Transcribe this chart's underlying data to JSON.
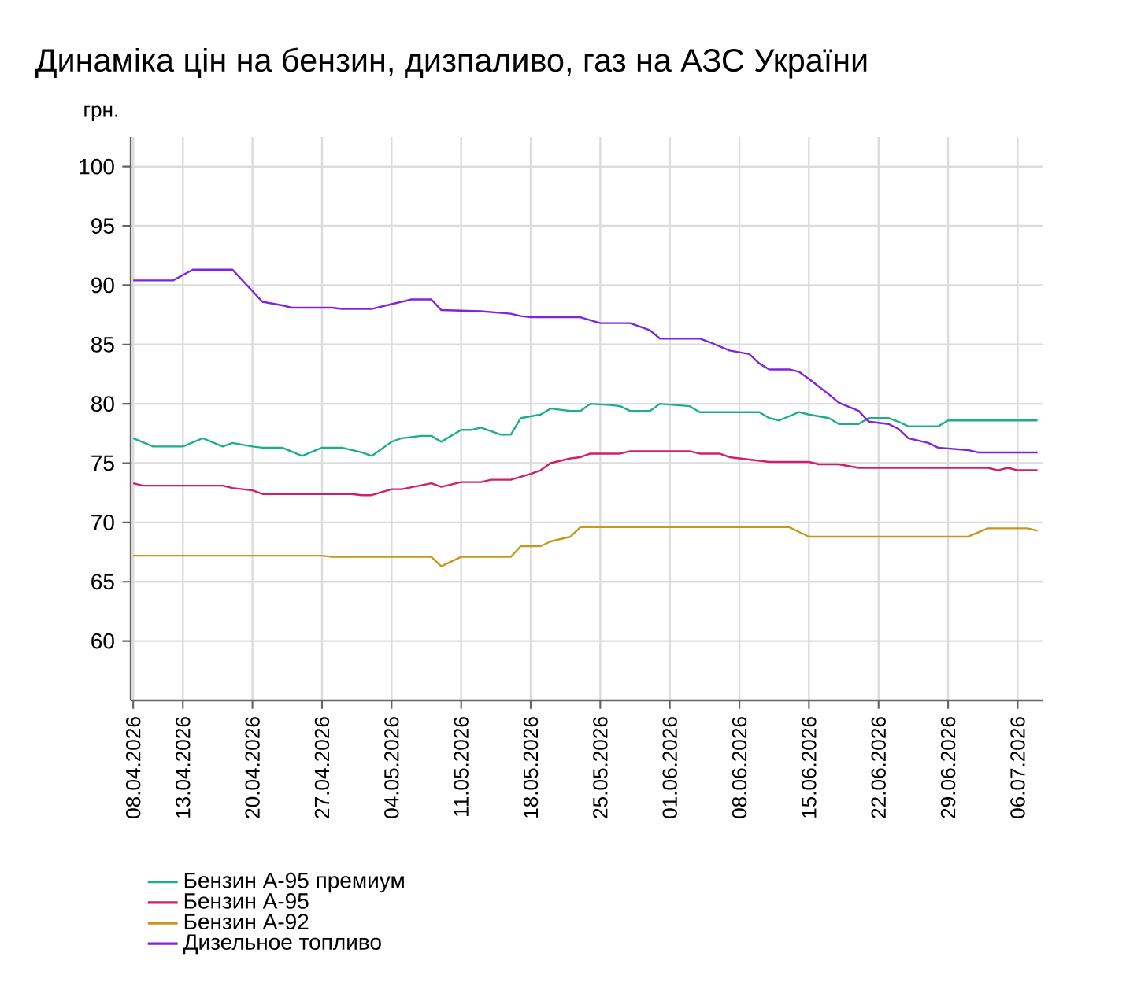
{
  "chart_data": {
    "type": "line",
    "title": "Динаміка цін на бензин, дизпаливо, газ на АЗС України",
    "ylabel": "грн.",
    "xlim": [
      "2026-04-07T18:00",
      "2026-07-08T12:00"
    ],
    "ylim": [
      55,
      102.5
    ],
    "yticks": [
      60,
      65,
      70,
      75,
      80,
      85,
      90,
      95,
      100
    ],
    "xticks": [
      {
        "value": "2026-04-08",
        "label": "08.04.2026"
      },
      {
        "value": "2026-04-13",
        "label": "13.04.2026"
      },
      {
        "value": "2026-04-20",
        "label": "20.04.2026"
      },
      {
        "value": "2026-04-27",
        "label": "27.04.2026"
      },
      {
        "value": "2026-05-04",
        "label": "04.05.2026"
      },
      {
        "value": "2026-05-11",
        "label": "11.05.2026"
      },
      {
        "value": "2026-05-18",
        "label": "18.05.2026"
      },
      {
        "value": "2026-05-25",
        "label": "25.05.2026"
      },
      {
        "value": "2026-06-01",
        "label": "01.06.2026"
      },
      {
        "value": "2026-06-08",
        "label": "08.06.2026"
      },
      {
        "value": "2026-06-15",
        "label": "15.06.2026"
      },
      {
        "value": "2026-06-22",
        "label": "22.06.2026"
      },
      {
        "value": "2026-06-29",
        "label": "29.06.2026"
      },
      {
        "value": "2026-07-06",
        "label": "06.07.2026"
      }
    ],
    "grid": true,
    "legend": "bottom",
    "series": [
      {
        "name": "Бензин А-95 премиум",
        "color": "#1fae8c",
        "x": [
          "2026-04-08",
          "2026-04-10",
          "2026-04-13",
          "2026-04-15",
          "2026-04-17",
          "2026-04-18",
          "2026-04-20",
          "2026-04-21",
          "2026-04-23",
          "2026-04-25",
          "2026-04-27",
          "2026-04-29",
          "2026-05-01",
          "2026-05-02",
          "2026-05-04",
          "2026-05-05",
          "2026-05-07",
          "2026-05-08",
          "2026-05-09",
          "2026-05-11",
          "2026-05-12",
          "2026-05-13",
          "2026-05-15",
          "2026-05-16",
          "2026-05-17",
          "2026-05-19",
          "2026-05-20",
          "2026-05-22",
          "2026-05-23",
          "2026-05-24",
          "2026-05-26",
          "2026-05-27",
          "2026-05-28",
          "2026-05-30",
          "2026-05-31",
          "2026-06-03",
          "2026-06-04",
          "2026-06-10",
          "2026-06-11",
          "2026-06-12",
          "2026-06-14",
          "2026-06-15",
          "2026-06-17",
          "2026-06-18",
          "2026-06-20",
          "2026-06-21",
          "2026-06-23",
          "2026-06-24",
          "2026-06-25",
          "2026-06-28",
          "2026-06-29",
          "2026-07-08"
        ],
        "values": [
          77.1,
          76.4,
          76.4,
          77.1,
          76.4,
          76.7,
          76.4,
          76.3,
          76.3,
          75.6,
          76.3,
          76.3,
          75.9,
          75.6,
          76.8,
          77.1,
          77.3,
          77.3,
          76.8,
          77.8,
          77.8,
          78.0,
          77.4,
          77.4,
          78.8,
          79.1,
          79.6,
          79.4,
          79.4,
          80.0,
          79.9,
          79.8,
          79.4,
          79.4,
          80.0,
          79.8,
          79.3,
          79.3,
          78.8,
          78.6,
          79.3,
          79.1,
          78.8,
          78.3,
          78.3,
          78.8,
          78.8,
          78.5,
          78.1,
          78.1,
          78.6,
          78.6
        ]
      },
      {
        "name": "Бензин А-95",
        "color": "#d0206a",
        "x": [
          "2026-04-08",
          "2026-04-09",
          "2026-04-17",
          "2026-04-18",
          "2026-04-20",
          "2026-04-21",
          "2026-04-30",
          "2026-05-01",
          "2026-05-02",
          "2026-05-04",
          "2026-05-05",
          "2026-05-08",
          "2026-05-09",
          "2026-05-11",
          "2026-05-13",
          "2026-05-14",
          "2026-05-16",
          "2026-05-18",
          "2026-05-19",
          "2026-05-20",
          "2026-05-22",
          "2026-05-23",
          "2026-05-24",
          "2026-05-27",
          "2026-05-28",
          "2026-06-03",
          "2026-06-04",
          "2026-06-06",
          "2026-06-07",
          "2026-06-08",
          "2026-06-11",
          "2026-06-15",
          "2026-06-16",
          "2026-06-18",
          "2026-06-20",
          "2026-07-03",
          "2026-07-04",
          "2026-07-05",
          "2026-07-06",
          "2026-07-08"
        ],
        "values": [
          73.3,
          73.1,
          73.1,
          72.9,
          72.7,
          72.4,
          72.4,
          72.3,
          72.3,
          72.8,
          72.8,
          73.3,
          73.0,
          73.4,
          73.4,
          73.6,
          73.6,
          74.1,
          74.4,
          75.0,
          75.4,
          75.5,
          75.8,
          75.8,
          76.0,
          76.0,
          75.8,
          75.8,
          75.5,
          75.4,
          75.1,
          75.1,
          74.9,
          74.9,
          74.6,
          74.6,
          74.4,
          74.6,
          74.4,
          74.4
        ]
      },
      {
        "name": "Бензин А-92",
        "color": "#c9961e",
        "x": [
          "2026-04-08",
          "2026-04-27",
          "2026-04-28",
          "2026-05-08",
          "2026-05-09",
          "2026-05-11",
          "2026-05-16",
          "2026-05-17",
          "2026-05-19",
          "2026-05-20",
          "2026-05-22",
          "2026-05-23",
          "2026-06-13",
          "2026-06-15",
          "2026-07-01",
          "2026-07-03",
          "2026-07-07",
          "2026-07-08"
        ],
        "values": [
          67.2,
          67.2,
          67.1,
          67.1,
          66.3,
          67.1,
          67.1,
          68.0,
          68.0,
          68.4,
          68.8,
          69.6,
          69.6,
          68.8,
          68.8,
          69.5,
          69.5,
          69.3
        ]
      },
      {
        "name": "Дизельное топливо",
        "color": "#8024e0",
        "x": [
          "2026-04-08",
          "2026-04-12",
          "2026-04-14",
          "2026-04-18",
          "2026-04-21",
          "2026-04-23",
          "2026-04-24",
          "2026-04-28",
          "2026-04-29",
          "2026-05-02",
          "2026-05-04",
          "2026-05-06",
          "2026-05-08",
          "2026-05-09",
          "2026-05-13",
          "2026-05-16",
          "2026-05-17",
          "2026-05-18",
          "2026-05-23",
          "2026-05-25",
          "2026-05-28",
          "2026-05-30",
          "2026-05-31",
          "2026-06-04",
          "2026-06-05",
          "2026-06-07",
          "2026-06-09",
          "2026-06-10",
          "2026-06-11",
          "2026-06-13",
          "2026-06-14",
          "2026-06-15",
          "2026-06-17",
          "2026-06-18",
          "2026-06-20",
          "2026-06-21",
          "2026-06-23",
          "2026-06-24",
          "2026-06-25",
          "2026-06-27",
          "2026-06-28",
          "2026-07-01",
          "2026-07-02",
          "2026-07-08"
        ],
        "values": [
          90.4,
          90.4,
          91.3,
          91.3,
          88.6,
          88.3,
          88.1,
          88.1,
          88.0,
          88.0,
          88.4,
          88.8,
          88.8,
          87.9,
          87.8,
          87.6,
          87.4,
          87.3,
          87.3,
          86.8,
          86.8,
          86.2,
          85.5,
          85.5,
          85.2,
          84.5,
          84.2,
          83.4,
          82.9,
          82.9,
          82.7,
          82.1,
          80.8,
          80.1,
          79.4,
          78.5,
          78.3,
          77.9,
          77.1,
          76.7,
          76.3,
          76.1,
          75.9,
          75.9
        ]
      }
    ]
  }
}
